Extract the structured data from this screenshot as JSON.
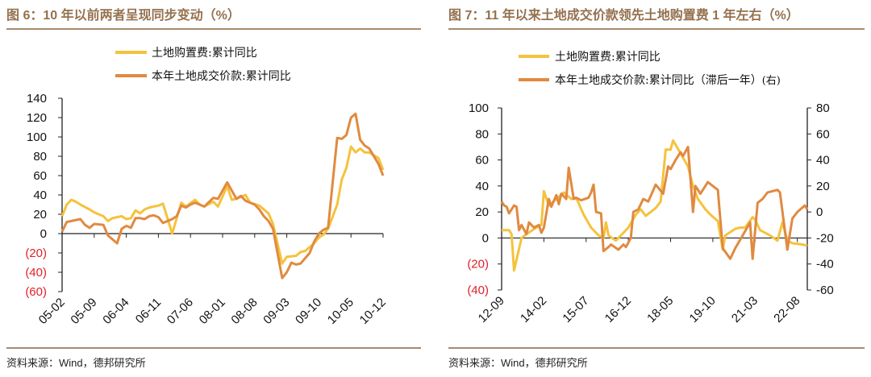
{
  "colors": {
    "yellow": "#f5c23c",
    "orange": "#e08a40",
    "rule": "#a88a6c",
    "title": "#94714f",
    "negative": "#e0202a"
  },
  "chart_data": [
    {
      "type": "line",
      "title": "图 6：10 年以前两者呈现同步变动（%）",
      "xticks": [
        "05-02",
        "05-09",
        "06-04",
        "06-11",
        "07-06",
        "08-01",
        "08-08",
        "09-03",
        "09-10",
        "10-05",
        "10-12"
      ],
      "x_start": "05-02",
      "x_end": "10-12",
      "ylim": [
        -60,
        140
      ],
      "yticks": [
        "140",
        "120",
        "100",
        "80",
        "60",
        "40",
        "20",
        "0",
        "(20)",
        "(40)",
        "(60)"
      ],
      "legend_position": "top",
      "source": "资料来源：Wind，德邦研究所",
      "series": [
        {
          "name": "土地购置费:累计同比",
          "color": "yellow",
          "points": [
            [
              "05-02",
              18
            ],
            [
              "05-03",
              30
            ],
            [
              "05-04",
              35
            ],
            [
              "05-05",
              33
            ],
            [
              "05-06",
              30
            ],
            [
              "05-08",
              25
            ],
            [
              "05-09",
              22
            ],
            [
              "05-11",
              18
            ],
            [
              "05-12",
              13
            ],
            [
              "06-01",
              16
            ],
            [
              "06-03",
              18
            ],
            [
              "06-04",
              15
            ],
            [
              "06-05",
              16
            ],
            [
              "06-06",
              24
            ],
            [
              "06-07",
              21
            ],
            [
              "06-08",
              25
            ],
            [
              "06-09",
              27
            ],
            [
              "06-11",
              29
            ],
            [
              "06-12",
              31
            ],
            [
              "07-02",
              0
            ],
            [
              "07-04",
              32
            ],
            [
              "07-05",
              28
            ],
            [
              "07-07",
              35
            ],
            [
              "07-08",
              30
            ],
            [
              "07-09",
              28
            ],
            [
              "07-11",
              33
            ],
            [
              "07-12",
              28
            ],
            [
              "08-02",
              49
            ],
            [
              "08-03",
              35
            ],
            [
              "08-04",
              36
            ],
            [
              "08-06",
              40
            ],
            [
              "08-07",
              32
            ],
            [
              "08-09",
              29
            ],
            [
              "08-11",
              21
            ],
            [
              "08-12",
              10
            ],
            [
              "09-02",
              -31
            ],
            [
              "09-03",
              -24
            ],
            [
              "09-05",
              -23
            ],
            [
              "09-06",
              -19
            ],
            [
              "09-07",
              -18
            ],
            [
              "09-09",
              -10
            ],
            [
              "09-10",
              -4
            ],
            [
              "09-11",
              -1
            ],
            [
              "09-12",
              5
            ],
            [
              "10-02",
              30
            ],
            [
              "10-03",
              56
            ],
            [
              "10-04",
              68
            ],
            [
              "10-05",
              90
            ],
            [
              "10-06",
              84
            ],
            [
              "10-07",
              88
            ],
            [
              "10-08",
              84
            ],
            [
              "10-09",
              84
            ],
            [
              "10-11",
              78
            ],
            [
              "10-12",
              66
            ]
          ]
        },
        {
          "name": "本年土地成交价款:累计同比",
          "color": "orange",
          "points": [
            [
              "05-02",
              2
            ],
            [
              "05-03",
              12
            ],
            [
              "05-04",
              13
            ],
            [
              "05-06",
              15
            ],
            [
              "05-07",
              9
            ],
            [
              "05-08",
              6
            ],
            [
              "05-09",
              10
            ],
            [
              "05-11",
              9
            ],
            [
              "05-12",
              -2
            ],
            [
              "06-02",
              -10
            ],
            [
              "06-03",
              5
            ],
            [
              "06-04",
              8
            ],
            [
              "06-05",
              6
            ],
            [
              "06-06",
              16
            ],
            [
              "06-07",
              16
            ],
            [
              "06-08",
              15
            ],
            [
              "06-09",
              18
            ],
            [
              "06-10",
              19
            ],
            [
              "06-11",
              17
            ],
            [
              "06-12",
              11
            ],
            [
              "07-02",
              15
            ],
            [
              "07-03",
              18
            ],
            [
              "07-04",
              29
            ],
            [
              "07-05",
              27
            ],
            [
              "07-06",
              30
            ],
            [
              "07-07",
              32
            ],
            [
              "07-09",
              28
            ],
            [
              "07-11",
              37
            ],
            [
              "07-12",
              36
            ],
            [
              "08-02",
              53
            ],
            [
              "08-04",
              36
            ],
            [
              "08-05",
              39
            ],
            [
              "08-06",
              34
            ],
            [
              "08-08",
              30
            ],
            [
              "08-09",
              25
            ],
            [
              "08-10",
              18
            ],
            [
              "08-11",
              13
            ],
            [
              "08-12",
              5
            ],
            [
              "09-02",
              -46
            ],
            [
              "09-03",
              -40
            ],
            [
              "09-04",
              -30
            ],
            [
              "09-05",
              -32
            ],
            [
              "09-06",
              -31
            ],
            [
              "09-08",
              -20
            ],
            [
              "09-09",
              -8
            ],
            [
              "09-10",
              0
            ],
            [
              "09-11",
              4
            ],
            [
              "09-12",
              6
            ],
            [
              "10-02",
              99
            ],
            [
              "10-03",
              98
            ],
            [
              "10-04",
              102
            ],
            [
              "10-05",
              120
            ],
            [
              "10-06",
              124
            ],
            [
              "10-07",
              97
            ],
            [
              "10-08",
              91
            ],
            [
              "10-09",
              88
            ],
            [
              "10-11",
              72
            ],
            [
              "10-12",
              60
            ]
          ]
        }
      ]
    },
    {
      "type": "line",
      "title": "图 7：11 年以来土地成交价款领先土地购置费 1 年左右（%）",
      "xticks": [
        "12-09",
        "14-02",
        "15-07",
        "16-12",
        "18-05",
        "19-10",
        "21-03",
        "22-08"
      ],
      "x_start": "12-09",
      "x_end": "22-12",
      "ylim": [
        -40,
        100
      ],
      "yticks": [
        "100",
        "80",
        "60",
        "40",
        "20",
        "0",
        "(20)",
        "(40)"
      ],
      "y2lim": [
        -60,
        80
      ],
      "y2ticks": [
        "80",
        "60",
        "40",
        "20",
        "0",
        "-20",
        "-40",
        "-60"
      ],
      "legend_position": "top",
      "source": "资料来源：Wind，德邦研究所",
      "series": [
        {
          "name": "土地购置费:累计同比",
          "color": "yellow",
          "axis": "left",
          "points": [
            [
              "12-09",
              6
            ],
            [
              "12-12",
              6
            ],
            [
              "13-01",
              3
            ],
            [
              "13-02",
              -25
            ],
            [
              "13-05",
              0
            ],
            [
              "13-07",
              3
            ],
            [
              "13-11",
              8
            ],
            [
              "14-01",
              10
            ],
            [
              "14-02",
              36
            ],
            [
              "14-04",
              25
            ],
            [
              "14-07",
              30
            ],
            [
              "14-10",
              35
            ],
            [
              "15-01",
              30
            ],
            [
              "15-03",
              31
            ],
            [
              "15-06",
              18
            ],
            [
              "15-09",
              8
            ],
            [
              "15-12",
              2
            ],
            [
              "16-02",
              0
            ],
            [
              "16-03",
              12
            ],
            [
              "16-04",
              2
            ],
            [
              "16-07",
              -2
            ],
            [
              "16-10",
              4
            ],
            [
              "16-12",
              8
            ],
            [
              "17-03",
              18
            ],
            [
              "17-05",
              22
            ],
            [
              "17-07",
              17
            ],
            [
              "17-09",
              20
            ],
            [
              "17-11",
              23
            ],
            [
              "18-01",
              28
            ],
            [
              "18-03",
              68
            ],
            [
              "18-05",
              68
            ],
            [
              "18-06",
              75
            ],
            [
              "18-09",
              65
            ],
            [
              "18-12",
              55
            ],
            [
              "19-02",
              40
            ],
            [
              "19-04",
              30
            ],
            [
              "19-07",
              22
            ],
            [
              "19-09",
              18
            ],
            [
              "19-12",
              13
            ],
            [
              "20-02",
              -9
            ],
            [
              "20-03",
              2
            ],
            [
              "20-07",
              7
            ],
            [
              "20-09",
              8
            ],
            [
              "20-11",
              8
            ],
            [
              "21-02",
              16
            ],
            [
              "21-03",
              14
            ],
            [
              "21-05",
              6
            ],
            [
              "21-09",
              2
            ],
            [
              "21-12",
              -2
            ],
            [
              "22-02",
              12
            ],
            [
              "22-04",
              -2
            ],
            [
              "22-06",
              -4
            ],
            [
              "22-10",
              -5
            ],
            [
              "22-12",
              -6
            ]
          ]
        },
        {
          "name": "本年土地成交价款:累计同比（滞后一年）",
          "axis_note": "(右)",
          "color": "orange",
          "axis": "right",
          "points": [
            [
              "12-09",
              8
            ],
            [
              "12-10",
              5
            ],
            [
              "12-11",
              4
            ],
            [
              "12-12",
              -1
            ],
            [
              "13-02",
              5
            ],
            [
              "13-03",
              4
            ],
            [
              "13-04",
              -14
            ],
            [
              "13-05",
              -10
            ],
            [
              "13-07",
              -17
            ],
            [
              "13-08",
              -8
            ],
            [
              "13-10",
              -12
            ],
            [
              "13-12",
              -10
            ],
            [
              "14-01",
              -16
            ],
            [
              "14-02",
              -12
            ],
            [
              "14-04",
              10
            ],
            [
              "14-05",
              4
            ],
            [
              "14-07",
              13
            ],
            [
              "14-08",
              6
            ],
            [
              "14-09",
              14
            ],
            [
              "14-11",
              10
            ],
            [
              "14-12",
              34
            ],
            [
              "15-02",
              10
            ],
            [
              "15-03",
              11
            ],
            [
              "15-05",
              9
            ],
            [
              "15-08",
              11
            ],
            [
              "15-09",
              15
            ],
            [
              "15-10",
              21
            ],
            [
              "15-11",
              0
            ],
            [
              "16-01",
              -1
            ],
            [
              "16-02",
              -30
            ],
            [
              "16-04",
              -27
            ],
            [
              "16-05",
              -25
            ],
            [
              "16-08",
              -29
            ],
            [
              "16-10",
              -25
            ],
            [
              "16-11",
              -27
            ],
            [
              "17-01",
              -20
            ],
            [
              "17-02",
              0
            ],
            [
              "17-04",
              2
            ],
            [
              "17-06",
              10
            ],
            [
              "17-08",
              8
            ],
            [
              "17-11",
              21
            ],
            [
              "18-02",
              14
            ],
            [
              "18-04",
              35
            ],
            [
              "18-05",
              33
            ],
            [
              "18-07",
              40
            ],
            [
              "18-09",
              46
            ],
            [
              "18-10",
              43
            ],
            [
              "18-12",
              50
            ],
            [
              "19-02",
              0
            ],
            [
              "19-03",
              20
            ],
            [
              "19-05",
              14
            ],
            [
              "19-08",
              23
            ],
            [
              "19-10",
              20
            ],
            [
              "19-12",
              17
            ],
            [
              "20-02",
              -28
            ],
            [
              "20-05",
              -36
            ],
            [
              "20-07",
              -28
            ],
            [
              "20-10",
              -18
            ],
            [
              "21-01",
              -8
            ],
            [
              "21-02",
              -36
            ],
            [
              "21-04",
              7
            ],
            [
              "21-06",
              10
            ],
            [
              "21-08",
              15
            ],
            [
              "21-12",
              17
            ],
            [
              "22-01",
              15
            ],
            [
              "22-04",
              -29
            ],
            [
              "22-06",
              -5
            ],
            [
              "22-08",
              0
            ],
            [
              "22-11",
              5
            ],
            [
              "22-12",
              2
            ]
          ]
        }
      ]
    }
  ]
}
